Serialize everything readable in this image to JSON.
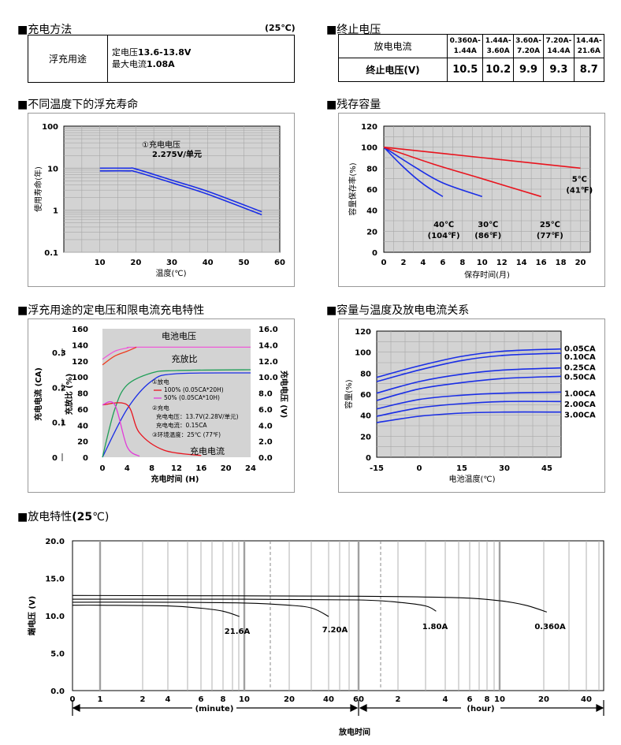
{
  "colors": {
    "plot_bg": "#d3d3d3",
    "grid": "#a8a8a8",
    "blue": "#1a2ee6",
    "red": "#e8141e",
    "green": "#1f9e57",
    "magenta": "#e23bd9",
    "pink": "#ee5bd8",
    "orange": "#ee3b1e"
  },
  "sec_charge": {
    "title": "■充电方法",
    "temp": "(25℃)",
    "row_label": "浮充用途",
    "line1_prefix": "定电压",
    "line1_value": "13.6-13.8V",
    "line2_prefix": "最大电流",
    "line2_value": "1.08A"
  },
  "sec_cutoff": {
    "title": "■终止电压",
    "row1_label": "放电电流",
    "row2_label": "终止电压(V)",
    "currents": [
      [
        "0.360A-",
        "1.44A"
      ],
      [
        "1.44A-",
        "3.60A"
      ],
      [
        "3.60A-",
        "7.20A"
      ],
      [
        "7.20A-",
        "14.4A"
      ],
      [
        "14.4A-",
        "21.6A"
      ]
    ],
    "voltages": [
      "10.5",
      "10.2",
      "9.9",
      "9.3",
      "8.7"
    ]
  },
  "sec_life": {
    "title": "■不同温度下的浮充寿命"
  },
  "sec_residual": {
    "title": "■残存容量"
  },
  "sec_floatchar": {
    "title": "■浮充用途的定电压和限电流充电特性"
  },
  "sec_captemp": {
    "title": "■容量与温度及放电电流关系"
  },
  "sec_discharge": {
    "title": "■放电特性",
    "title_bold": "(25",
    "title_tail": "℃)"
  },
  "chart_data": [
    {
      "id": "float_life",
      "type": "line",
      "xlabel": "温度(℃)",
      "ylabel": "使用寿命(年)",
      "xlim": [
        0,
        60
      ],
      "yscale": "log",
      "ylim": [
        0.1,
        100
      ],
      "xticks": [
        "10",
        "20",
        "30",
        "40",
        "50",
        "60"
      ],
      "yticks": [
        "100",
        "10",
        "1",
        "0.1"
      ],
      "annotation_line1": "①充电电压",
      "annotation_line2": "2.275V/单元",
      "series": [
        {
          "name": "upper",
          "points": [
            [
              10,
              10
            ],
            [
              18,
              10
            ],
            [
              20,
              9.6
            ],
            [
              30,
              5.2
            ],
            [
              40,
              2.8
            ],
            [
              55,
              0.92
            ]
          ]
        },
        {
          "name": "lower",
          "points": [
            [
              10,
              8.6
            ],
            [
              18,
              8.6
            ],
            [
              20,
              8.2
            ],
            [
              30,
              4.5
            ],
            [
              40,
              2.4
            ],
            [
              55,
              0.78
            ]
          ]
        }
      ]
    },
    {
      "id": "residual",
      "type": "line",
      "xlabel": "保存时间(月)",
      "ylabel": "容量保存率(%)",
      "xlim": [
        0,
        21
      ],
      "ylim": [
        0,
        120
      ],
      "xticks": [
        "0",
        "2",
        "4",
        "6",
        "8",
        "10",
        "12",
        "14",
        "16",
        "18",
        "20"
      ],
      "yticks": [
        "0",
        "20",
        "40",
        "60",
        "80",
        "100",
        "120"
      ],
      "series": [
        {
          "name": "40℃",
          "alt": "(104℉)",
          "color": "blue",
          "points": [
            [
              0,
              100
            ],
            [
              2,
              81
            ],
            [
              4,
              65
            ],
            [
              6,
              53
            ]
          ]
        },
        {
          "name": "30℃",
          "alt": "(86℉)",
          "color": "blue",
          "points": [
            [
              0,
              100
            ],
            [
              3,
              82
            ],
            [
              6,
              66
            ],
            [
              10,
              53
            ]
          ]
        },
        {
          "name": "25℃",
          "alt": "(77℉)",
          "color": "red",
          "points": [
            [
              0,
              100
            ],
            [
              5,
              84
            ],
            [
              10,
              70
            ],
            [
              16,
              53
            ]
          ]
        },
        {
          "name": "5℃",
          "alt": "(41℉)",
          "color": "red",
          "points": [
            [
              0,
              100
            ],
            [
              10,
              90
            ],
            [
              20,
              80
            ]
          ]
        }
      ]
    },
    {
      "id": "float_charge",
      "type": "line",
      "xlabel": "充电时间 (H)",
      "ylabel_current": "充电电流 (CA)",
      "ylabel_ratio": "充放比 (%)",
      "ylabel_voltage": "充电电压 (V)",
      "xticks": [
        "0",
        "4",
        "8",
        "12",
        "16",
        "20",
        "24"
      ],
      "y_current_ticks": [
        "0.3",
        "0.2",
        "0.1",
        "0"
      ],
      "y_ratio_ticks": [
        "160",
        "140",
        "120",
        "100",
        "80",
        "60",
        "40",
        "20",
        "0"
      ],
      "y_voltage_ticks": [
        "16.0",
        "14.0",
        "12.0",
        "10.0",
        "8.0",
        "6.0",
        "4.0",
        "2.0",
        "0.0"
      ],
      "label_voltage": "电池电压",
      "label_ratio": "充放比",
      "label_current": "充电电流",
      "legend_discharge": "①放电",
      "legend_100": "100% (0.05CA*20H)",
      "legend_50": "50% (0.05CA*10H)",
      "legend_charge": "②充电",
      "legend_cv": "充电电压：13.7V(2.28V/单元)",
      "legend_cc": "充电电流：0.15CA",
      "legend_temp": "③环境温度：25℃ (77℉)",
      "series": [
        {
          "name": "voltage_100",
          "color": "pink",
          "points": [
            [
              0,
              12.2
            ],
            [
              2,
              13.2
            ],
            [
              4,
              13.6
            ],
            [
              6,
              13.7
            ],
            [
              24,
              13.7
            ]
          ]
        },
        {
          "name": "voltage_50",
          "color": "orange",
          "points": [
            [
              0,
              11.5
            ],
            [
              2,
              12.6
            ],
            [
              4,
              13.2
            ],
            [
              5.5,
              13.7
            ]
          ]
        },
        {
          "name": "ratio_100",
          "color": "blue",
          "points": [
            [
              0,
              0
            ],
            [
              4,
              60
            ],
            [
              8,
              95
            ],
            [
              12,
              104
            ],
            [
              24,
              105
            ]
          ]
        },
        {
          "name": "ratio_50",
          "color": "green",
          "points": [
            [
              0,
              0
            ],
            [
              2,
              60
            ],
            [
              4,
              90
            ],
            [
              8,
              105
            ],
            [
              12,
              108
            ],
            [
              24,
              109
            ]
          ]
        },
        {
          "name": "current_100",
          "color": "red",
          "points": [
            [
              0,
              0.15
            ],
            [
              4,
              0.15
            ],
            [
              6,
              0.07
            ],
            [
              10,
              0.02
            ],
            [
              16,
              0.005
            ]
          ]
        },
        {
          "name": "current_50",
          "color": "magenta",
          "points": [
            [
              0,
              0.15
            ],
            [
              2,
              0.15
            ],
            [
              4,
              0.03
            ],
            [
              6,
              0.003
            ]
          ]
        }
      ]
    },
    {
      "id": "capacity_temp",
      "type": "line",
      "xlabel": "电池温度(℃)",
      "ylabel": "容量(%)",
      "xlim": [
        -15,
        50
      ],
      "ylim": [
        0,
        120
      ],
      "xticks": [
        "-15",
        "0",
        "15",
        "30",
        "45"
      ],
      "yticks": [
        "0",
        "20",
        "40",
        "60",
        "80",
        "100",
        "120"
      ],
      "series": [
        {
          "name": "0.05CA",
          "points": [
            [
              -15,
              76
            ],
            [
              0,
              87
            ],
            [
              15,
              96
            ],
            [
              30,
              101
            ],
            [
              50,
              103
            ]
          ]
        },
        {
          "name": "0.10CA",
          "points": [
            [
              -15,
              72
            ],
            [
              0,
              83
            ],
            [
              15,
              92
            ],
            [
              30,
              97
            ],
            [
              50,
              99
            ]
          ]
        },
        {
          "name": "0.25CA",
          "points": [
            [
              -15,
              61
            ],
            [
              0,
              72
            ],
            [
              15,
              79
            ],
            [
              30,
              83
            ],
            [
              50,
              85
            ]
          ]
        },
        {
          "name": "0.50CA",
          "points": [
            [
              -15,
              54
            ],
            [
              0,
              65
            ],
            [
              15,
              71
            ],
            [
              30,
              75
            ],
            [
              50,
              77
            ]
          ]
        },
        {
          "name": "1.00CA",
          "points": [
            [
              -15,
              46
            ],
            [
              0,
              55
            ],
            [
              15,
              59
            ],
            [
              30,
              61
            ],
            [
              50,
              62
            ]
          ]
        },
        {
          "name": "2.00CA",
          "points": [
            [
              -15,
              39
            ],
            [
              0,
              47
            ],
            [
              15,
              51
            ],
            [
              30,
              53
            ],
            [
              50,
              53
            ]
          ]
        },
        {
          "name": "3.00CA",
          "points": [
            [
              -15,
              33
            ],
            [
              0,
              39
            ],
            [
              15,
              42
            ],
            [
              30,
              43
            ],
            [
              50,
              43
            ]
          ]
        }
      ]
    },
    {
      "id": "discharge",
      "type": "line",
      "xlabel": "放电时间",
      "ylabel": "端电压 (V)",
      "ylim": [
        0,
        20
      ],
      "yticks": [
        "20.0",
        "15.0",
        "10.0",
        "5.0",
        "0.0"
      ],
      "xticks_minute": [
        "0",
        "1",
        "2",
        "4",
        "6",
        "8",
        "10",
        "20",
        "40",
        "60"
      ],
      "xticks_hour": [
        "2",
        "4",
        "6",
        "8",
        "10",
        "20",
        "40"
      ],
      "unit_minute": "(minute)",
      "unit_hour": "(hour)",
      "series": [
        {
          "name": "21.6A",
          "points": [
            [
              0,
              11.4
            ],
            [
              1,
              11.4
            ],
            [
              4,
              11.3
            ],
            [
              6,
              11.0
            ],
            [
              8,
              10.6
            ],
            [
              9.5,
              9.9
            ]
          ]
        },
        {
          "name": "7.20A",
          "points": [
            [
              0,
              11.8
            ],
            [
              4,
              11.8
            ],
            [
              10,
              11.7
            ],
            [
              20,
              11.4
            ],
            [
              30,
              11.0
            ],
            [
              40,
              9.9
            ]
          ]
        },
        {
          "name": "1.80A",
          "points": [
            [
              0,
              12.2
            ],
            [
              10,
              12.2
            ],
            [
              60,
              12.1
            ],
            [
              120,
              11.8
            ],
            [
              180,
              11.3
            ],
            [
              210,
              10.6
            ]
          ]
        },
        {
          "name": "0.360A",
          "points": [
            [
              0,
              12.7
            ],
            [
              60,
              12.6
            ],
            [
              300,
              12.4
            ],
            [
              600,
              12.0
            ],
            [
              900,
              11.4
            ],
            [
              1260,
              10.5
            ]
          ]
        }
      ]
    }
  ]
}
